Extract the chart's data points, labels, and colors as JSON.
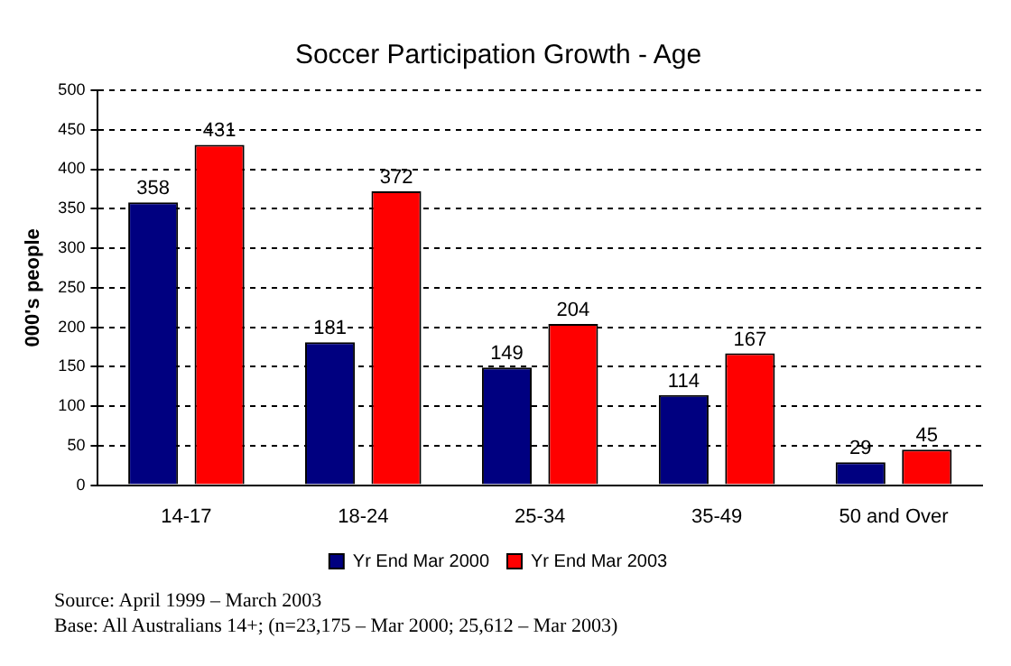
{
  "chart_data": {
    "type": "bar",
    "title": "Soccer Participation Growth - Age",
    "ylabel": "000's people",
    "categories": [
      "14-17",
      "18-24",
      "25-34",
      "35-49",
      "50 and Over"
    ],
    "series": [
      {
        "name": "Yr End Mar 2000",
        "color": "#000080",
        "values": [
          358,
          181,
          149,
          114,
          29
        ]
      },
      {
        "name": "Yr End Mar 2003",
        "color": "#ff0000",
        "values": [
          431,
          372,
          204,
          167,
          45
        ]
      }
    ],
    "ylim": [
      0,
      500
    ],
    "yticks": [
      0,
      50,
      100,
      150,
      200,
      250,
      300,
      350,
      400,
      450,
      500
    ],
    "grid": "y",
    "legend": "bottom",
    "data_labels": true,
    "annotations": [
      "Source: April 1999 – March 2003",
      "Base: All Australians 14+; (n=23,175 – Mar 2000; 25,612 – Mar 2003)"
    ]
  }
}
